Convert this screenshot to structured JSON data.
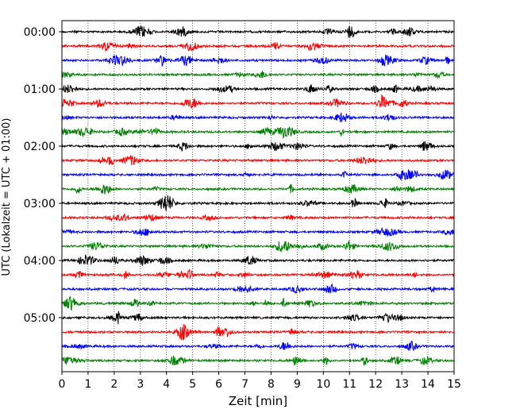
{
  "chart_data": {
    "type": "line",
    "title": "",
    "xlabel": "Zeit  [min]",
    "ylabel": "UTC (Lokalzeit = UTC + 01:00)",
    "xlim": [
      0,
      15
    ],
    "x_ticks": [
      0,
      1,
      2,
      3,
      4,
      5,
      6,
      7,
      8,
      9,
      10,
      11,
      12,
      13,
      14,
      15
    ],
    "y_tick_labels": [
      "00:00",
      "01:00",
      "02:00",
      "03:00",
      "04:00",
      "05:00"
    ],
    "grid": "vertical dotted",
    "trace_interval_minutes": 15,
    "trace_count": 24,
    "trace_colors": [
      "#000000",
      "#ff0000",
      "#0000ff",
      "#008000"
    ],
    "legend": "none"
  }
}
